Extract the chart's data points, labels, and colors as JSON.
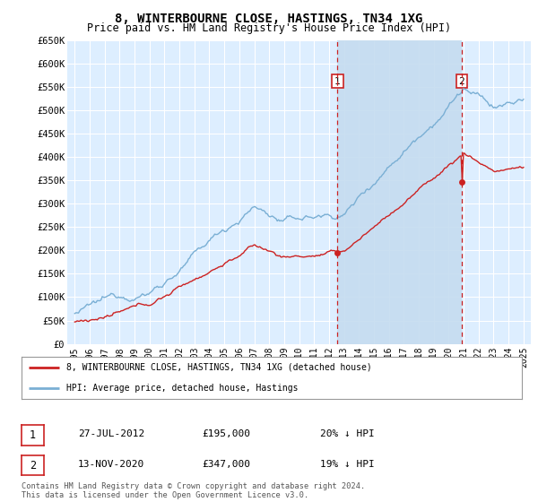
{
  "title": "8, WINTERBOURNE CLOSE, HASTINGS, TN34 1XG",
  "subtitle": "Price paid vs. HM Land Registry's House Price Index (HPI)",
  "ylabel_ticks": [
    "£0",
    "£50K",
    "£100K",
    "£150K",
    "£200K",
    "£250K",
    "£300K",
    "£350K",
    "£400K",
    "£450K",
    "£500K",
    "£550K",
    "£600K",
    "£650K"
  ],
  "ylim": [
    0,
    650000
  ],
  "ytick_vals": [
    0,
    50000,
    100000,
    150000,
    200000,
    250000,
    300000,
    350000,
    400000,
    450000,
    500000,
    550000,
    600000,
    650000
  ],
  "hpi_color": "#7aafd4",
  "price_color": "#cc2222",
  "bg_color": "#ddeeff",
  "shade_color": "#c5dcf0",
  "grid_color": "#ffffff",
  "sale1_price": 195000,
  "sale1_x": 2012.57,
  "sale2_price": 347000,
  "sale2_x": 2020.87,
  "legend_label_price": "8, WINTERBOURNE CLOSE, HASTINGS, TN34 1XG (detached house)",
  "legend_label_hpi": "HPI: Average price, detached house, Hastings",
  "footnote": "Contains HM Land Registry data © Crown copyright and database right 2024.\nThis data is licensed under the Open Government Licence v3.0.",
  "table_rows": [
    {
      "label": "1",
      "date": "27-JUL-2012",
      "price": "£195,000",
      "hpi_note": "20% ↓ HPI"
    },
    {
      "label": "2",
      "date": "13-NOV-2020",
      "price": "£347,000",
      "hpi_note": "19% ↓ HPI"
    }
  ],
  "xmin": 1994.5,
  "xmax": 2025.5,
  "xtick_years": [
    1995,
    1996,
    1997,
    1998,
    1999,
    2000,
    2001,
    2002,
    2003,
    2004,
    2005,
    2006,
    2007,
    2008,
    2009,
    2010,
    2011,
    2012,
    2013,
    2014,
    2015,
    2016,
    2017,
    2018,
    2019,
    2020,
    2021,
    2022,
    2023,
    2024,
    2025
  ]
}
